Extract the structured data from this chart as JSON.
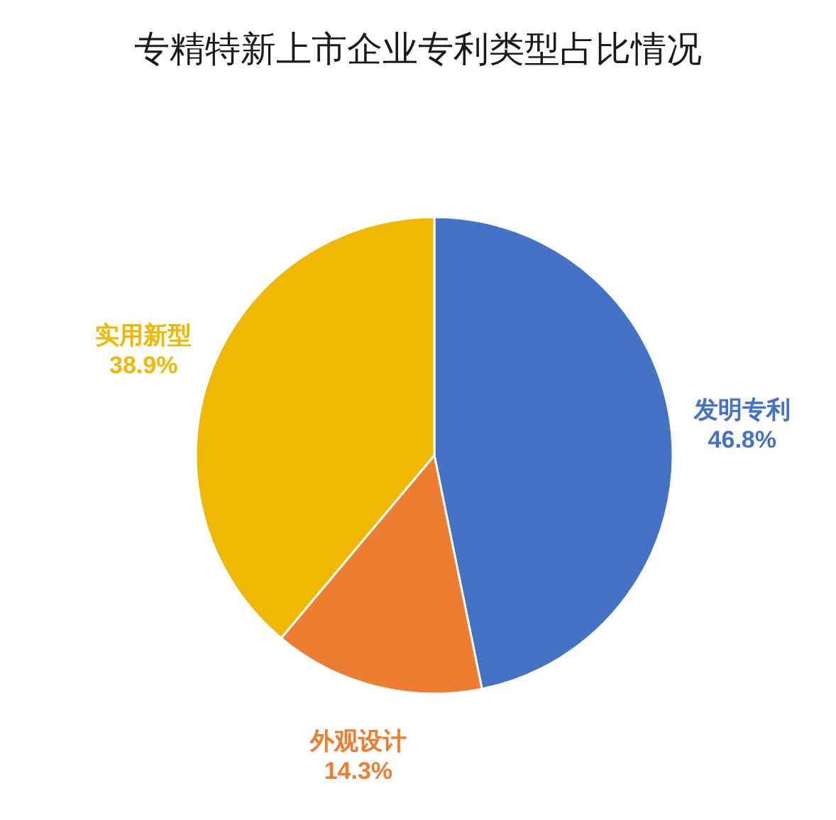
{
  "chart_data": {
    "type": "pie",
    "title": "专精特新上市企业专利类型占比情况",
    "categories": [
      "发明专利",
      "外观设计",
      "实用新型"
    ],
    "values": [
      46.8,
      14.3,
      38.9
    ],
    "colors": [
      "#4472c4",
      "#ed7d31",
      "#f0b800"
    ],
    "value_labels": [
      "46.8%",
      "14.3%",
      "38.9%"
    ]
  }
}
